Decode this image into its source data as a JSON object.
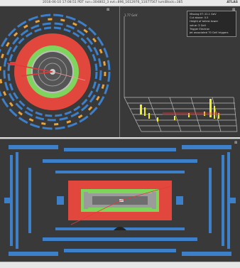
{
  "window": {
    "title": "2016-06-10 17:08:51 PDT run=304802_3 evt=896_1612976_11077567 lumiBlock=385",
    "brand": "ATLAS"
  },
  "panels": {
    "xy_view": {
      "control_glyph": "⊠"
    },
    "lego_view": {
      "control_glyph": "⊠",
      "axis_label": "1.77 GeV",
      "info_lines": [
        "Missing ET: 22.1 GeV",
        "Cut above: 0.5",
        "Height of tallest tower",
        "value: 3 GeV",
        "Trigger Electron",
        "Jet associated 70 GeV triggers"
      ]
    },
    "rz_view": {
      "control_glyph": "⊠"
    }
  },
  "colors": {
    "background": "#393939",
    "muon_chambers": "#3d7fc8",
    "hadronic_calorimeter": "#e2473d",
    "em_calorimeter": "#7fd45b",
    "inner_detector": "#9b9b9b",
    "toroid_coils": "#e7a33c",
    "tracks": "#e23a3a",
    "towers": "#f2f21e"
  },
  "icons": [
    "close-icon",
    "lego-grid-icon",
    "track-lines-icon"
  ]
}
